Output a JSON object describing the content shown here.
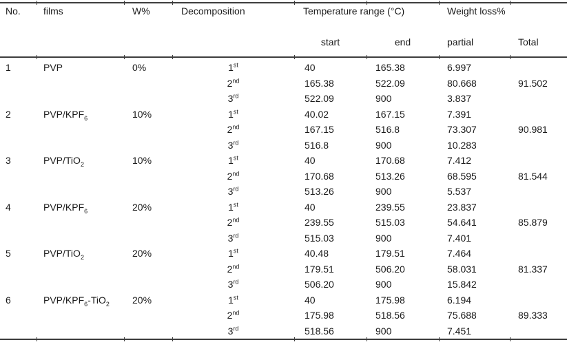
{
  "colors": {
    "background": "#ffffff",
    "text": "#1a1a1a",
    "rule": "#3d3d3d"
  },
  "table": {
    "header": {
      "no": "No.",
      "films": "films",
      "w": "W%",
      "decomposition": "Decomposition",
      "temp_range": "Temperature range (°C)",
      "weight_loss": "Weight loss%",
      "start": "start",
      "end": "end",
      "partial": "partial",
      "total": "Total"
    },
    "rows": [
      {
        "no": "1",
        "film": [
          {
            "t": "PVP"
          }
        ],
        "w": "0%",
        "total": "91.502",
        "steps": [
          {
            "ord": "1",
            "suf": "st",
            "start": "40",
            "end": "165.38",
            "partial": "6.997"
          },
          {
            "ord": "2",
            "suf": "nd",
            "start": "165.38",
            "end": "522.09",
            "partial": "80.668"
          },
          {
            "ord": "3",
            "suf": "rd",
            "start": "522.09",
            "end": "900",
            "partial": "3.837"
          }
        ]
      },
      {
        "no": "2",
        "film": [
          {
            "t": "PVP/KPF"
          },
          {
            "sub": "6"
          }
        ],
        "w": "10%",
        "total": "90.981",
        "steps": [
          {
            "ord": "1",
            "suf": "st",
            "start": "40.02",
            "end": "167.15",
            "partial": "7.391"
          },
          {
            "ord": "2",
            "suf": "nd",
            "start": "167.15",
            "end": "516.8",
            "partial": "73.307"
          },
          {
            "ord": "3",
            "suf": "rd",
            "start": "516.8",
            "end": "900",
            "partial": "10.283"
          }
        ]
      },
      {
        "no": "3",
        "film": [
          {
            "t": "PVP/TiO"
          },
          {
            "sub": "2"
          }
        ],
        "w": "10%",
        "total": "81.544",
        "steps": [
          {
            "ord": "1",
            "suf": "st",
            "start": "40",
            "end": "170.68",
            "partial": "7.412"
          },
          {
            "ord": "2",
            "suf": "nd",
            "start": "170.68",
            "end": "513.26",
            "partial": "68.595"
          },
          {
            "ord": "3",
            "suf": "rd",
            "start": "513.26",
            "end": "900",
            "partial": "5.537"
          }
        ]
      },
      {
        "no": "4",
        "film": [
          {
            "t": "PVP/KPF"
          },
          {
            "sub": "6"
          }
        ],
        "w": "20%",
        "total": "85.879",
        "steps": [
          {
            "ord": "1",
            "suf": "st",
            "start": "40",
            "end": "239.55",
            "partial": "23.837"
          },
          {
            "ord": "2",
            "suf": "nd",
            "start": "239.55",
            "end": "515.03",
            "partial": "54.641"
          },
          {
            "ord": "3",
            "suf": "rd",
            "start": "515.03",
            "end": "900",
            "partial": "7.401"
          }
        ]
      },
      {
        "no": "5",
        "film": [
          {
            "t": "PVP/TiO"
          },
          {
            "sub": "2"
          }
        ],
        "w": "20%",
        "total": "81.337",
        "steps": [
          {
            "ord": "1",
            "suf": "st",
            "start": "40.48",
            "end": "179.51",
            "partial": "7.464"
          },
          {
            "ord": "2",
            "suf": "nd",
            "start": "179.51",
            "end": "506.20",
            "partial": "58.031"
          },
          {
            "ord": "3",
            "suf": "rd",
            "start": "506.20",
            "end": "900",
            "partial": "15.842"
          }
        ]
      },
      {
        "no": "6",
        "film": [
          {
            "t": "PVP/KPF"
          },
          {
            "sub": "6"
          },
          {
            "t": "-TiO"
          },
          {
            "sub": "2"
          }
        ],
        "w": "20%",
        "total": "89.333",
        "steps": [
          {
            "ord": "1",
            "suf": "st",
            "start": "40",
            "end": "175.98",
            "partial": "6.194"
          },
          {
            "ord": "2",
            "suf": "nd",
            "start": "175.98",
            "end": "518.56",
            "partial": "75.688"
          },
          {
            "ord": "3",
            "suf": "rd",
            "start": "518.56",
            "end": "900",
            "partial": "7.451"
          }
        ]
      }
    ]
  }
}
